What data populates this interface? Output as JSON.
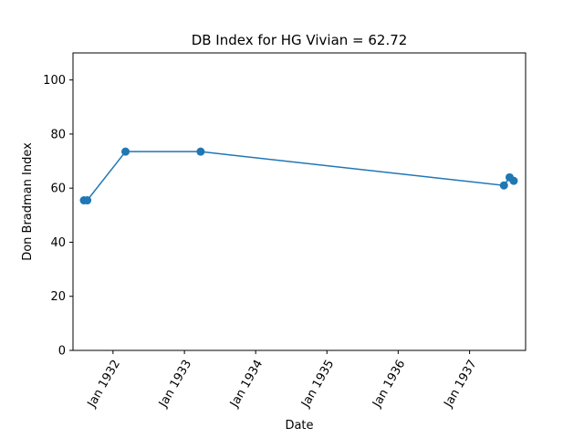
{
  "chart_data": {
    "type": "line",
    "title": "DB Index for HG Vivian = 62.72",
    "xlabel": "Date",
    "ylabel": "Don Bradman Index",
    "ylim": [
      0,
      110
    ],
    "yticks": [
      0,
      20,
      40,
      60,
      80,
      100
    ],
    "xlim": [
      "1931-06-10",
      "1937-10-15"
    ],
    "xticks": [
      {
        "date": "1932-01-01",
        "label": "Jan 1932"
      },
      {
        "date": "1933-01-01",
        "label": "Jan 1933"
      },
      {
        "date": "1934-01-01",
        "label": "Jan 1934"
      },
      {
        "date": "1935-01-01",
        "label": "Jan 1935"
      },
      {
        "date": "1936-01-01",
        "label": "Jan 1936"
      },
      {
        "date": "1937-01-01",
        "label": "Jan 1937"
      }
    ],
    "grid": false,
    "series": [
      {
        "color": "#1f77b4",
        "points": [
          {
            "x": "1931-08-05",
            "y": 55.5
          },
          {
            "x": "1931-08-22",
            "y": 55.5
          },
          {
            "x": "1932-03-05",
            "y": 73.5
          },
          {
            "x": "1933-03-25",
            "y": 73.5
          },
          {
            "x": "1937-06-26",
            "y": 61.0
          },
          {
            "x": "1937-07-25",
            "y": 64.0
          },
          {
            "x": "1937-08-15",
            "y": 62.7
          }
        ]
      }
    ]
  }
}
